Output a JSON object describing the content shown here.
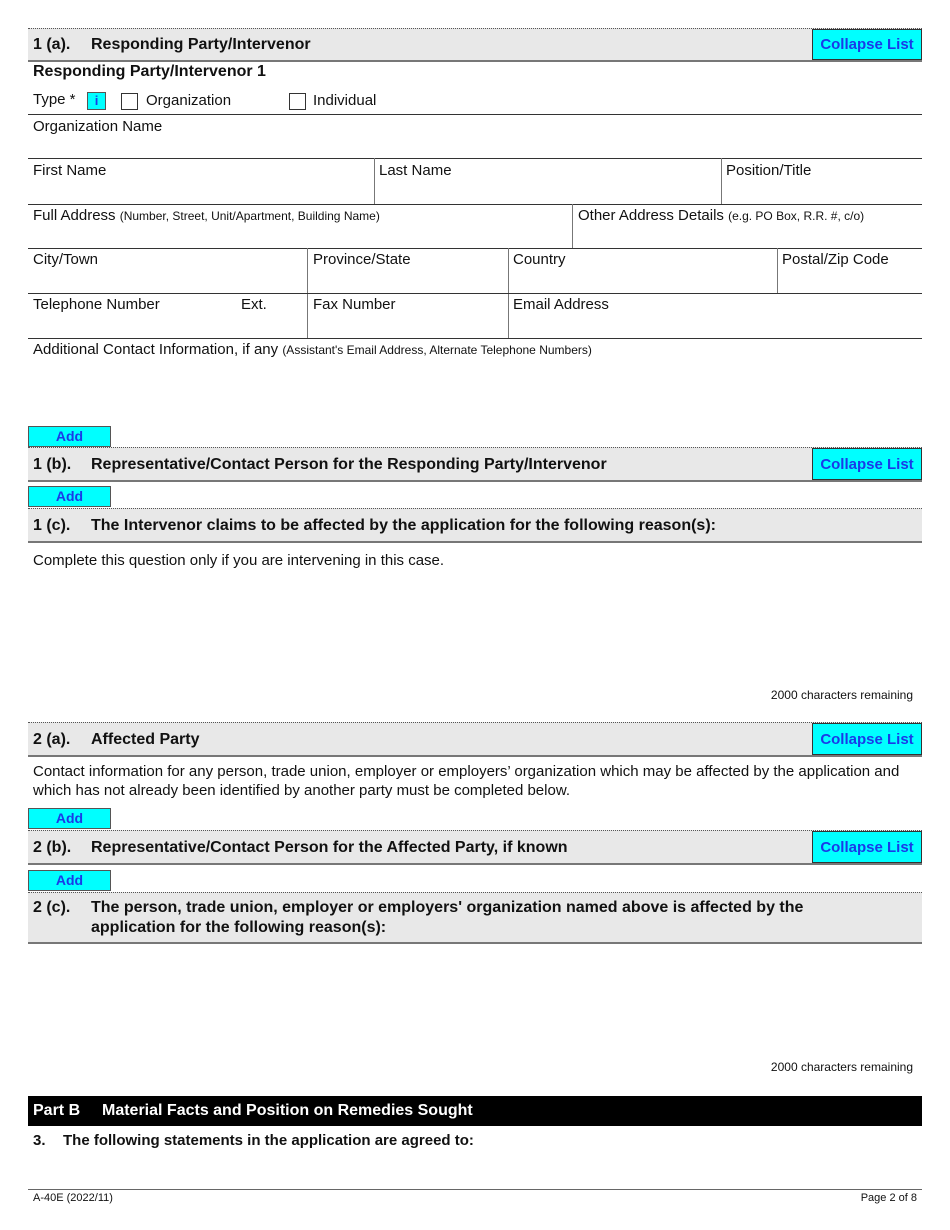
{
  "s1a": {
    "num": "1 (a).",
    "title": "Responding Party/Intervenor",
    "collapse": "Collapse List"
  },
  "sub_title": "Responding  Party/Intervenor  1",
  "type": {
    "label": "Type *",
    "info": "i",
    "options": [
      "Organization",
      "Individual"
    ]
  },
  "fields": {
    "org_name": "Organization Name",
    "first_name": "First Name",
    "last_name": "Last Name",
    "position": "Position/Title",
    "full_address": "Full Address",
    "full_address_hint": "(Number, Street, Unit/Apartment, Building Name)",
    "other_address": "Other Address Details",
    "other_address_hint": "(e.g. PO Box, R.R. #, c/o)",
    "city": "City/Town",
    "province": "Province/State",
    "country": "Country",
    "postal": "Postal/Zip Code",
    "phone": "Telephone Number",
    "ext": "Ext.",
    "fax": "Fax Number",
    "email": "Email Address",
    "additional": "Additional Contact Information, if any",
    "additional_hint": "(Assistant's Email Address, Alternate Telephone Numbers)"
  },
  "add_label": "Add",
  "s1b": {
    "num": "1 (b).",
    "title": "Representative/Contact Person for the Responding Party/Intervenor",
    "collapse": "Collapse List"
  },
  "s1c": {
    "num": "1 (c).",
    "title": "The Intervenor claims to be affected by the application for the following reason(s):",
    "note": "Complete this question only if you are intervening in this case.",
    "remaining": "2000  characters remaining"
  },
  "s2a": {
    "num": "2 (a).",
    "title": "Affected Party",
    "collapse": "Collapse List",
    "note": "Contact information for any person, trade union, employer or employers’ organization which may be affected by the application and which has not already been identified by another party must be completed below."
  },
  "s2b": {
    "num": "2 (b).",
    "title": "Representative/Contact Person for the Affected Party, if known",
    "collapse": "Collapse List"
  },
  "s2c": {
    "num": "2 (c).",
    "title": "The person, trade union, employer or employers' organization named above is affected by the application for the following reason(s):",
    "remaining": "2000  characters remaining"
  },
  "partB": {
    "label": "Part B",
    "title": "Material Facts and Position on Remedies Sought"
  },
  "q3": {
    "num": "3.",
    "text": "The following statements in the application are agreed to:"
  },
  "footer": {
    "form": "A-40E (2022/11)",
    "page": "Page 2 of 8"
  }
}
